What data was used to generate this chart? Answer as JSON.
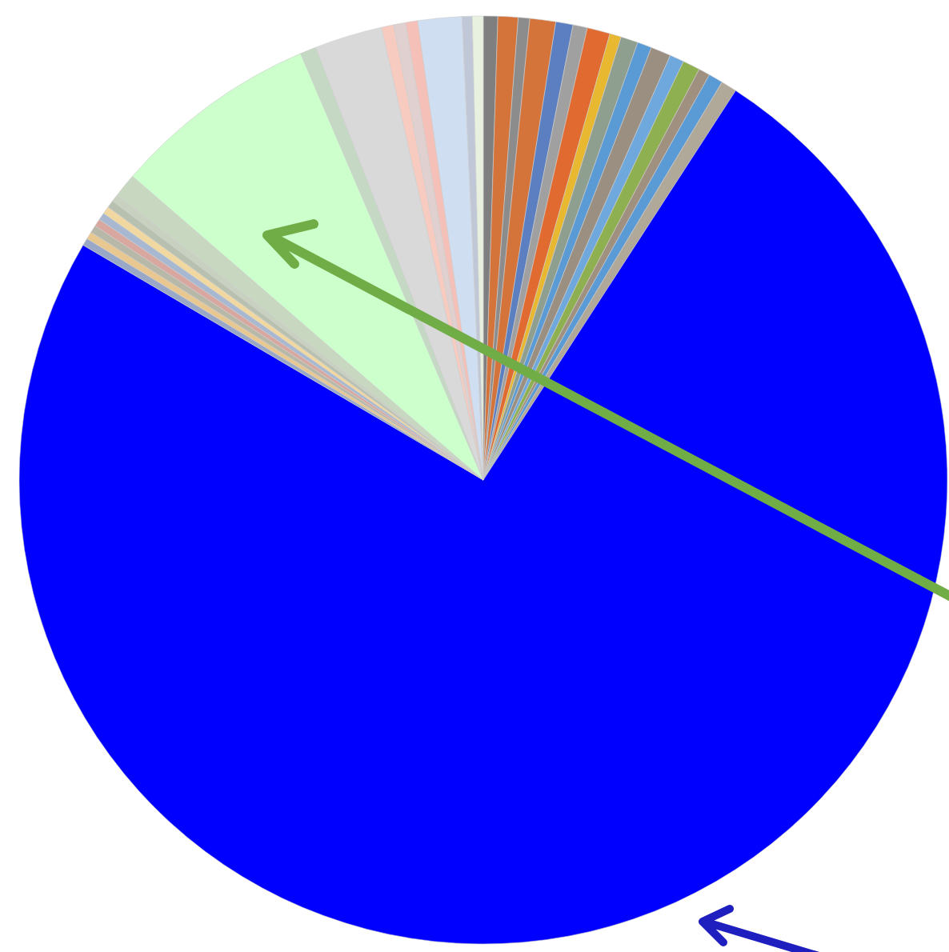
{
  "chart_data": {
    "type": "pie",
    "categories": [
      null,
      null,
      null,
      null,
      null,
      null,
      null,
      null,
      null,
      null,
      null,
      null,
      null,
      null,
      null,
      null,
      null,
      null,
      null,
      null,
      null,
      null,
      null,
      null,
      null,
      null,
      null,
      null,
      null,
      null,
      null,
      null,
      null,
      null,
      null
    ],
    "values": [
      0.5,
      0.7,
      0.4,
      0.9,
      0.6,
      0.5,
      0.8,
      0.4,
      0.6,
      0.5,
      0.7,
      0.5,
      0.6,
      0.4,
      0.5,
      0.55,
      74.3,
      0.26,
      0.26,
      0.26,
      0.26,
      0.26,
      0.26,
      0.26,
      0.26,
      0.83,
      7.2,
      0.56,
      2.36,
      0.42,
      0.42,
      0.42,
      1.53,
      0.35,
      0.38
    ],
    "colors": [
      "#7f7f7f",
      "#d4733a",
      "#8c8c8c",
      "#d4733a",
      "#5b7fc0",
      "#a0a0a0",
      "#e06a30",
      "#e8b830",
      "#8f9f8f",
      "#5b9bd5",
      "#9a8f80",
      "#6fa8dc",
      "#8fb050",
      "#a09080",
      "#5b9bd5",
      "#b0a898",
      "#0000ff",
      "#9aa8c8",
      "#e8c890",
      "#b8b8a8",
      "#d8a8a0",
      "#a8b8d0",
      "#f0d8a0",
      "#b8c0b0",
      "#c8d0c0",
      "#c8d8c0",
      "#ccffcc",
      "#c4d8c4",
      "#d9d9d9",
      "#f8cbc0",
      "#e0d0d0",
      "#f4c0b8",
      "#d0def2",
      "#c0c8d8",
      "#e8f0e0"
    ]
  }
}
